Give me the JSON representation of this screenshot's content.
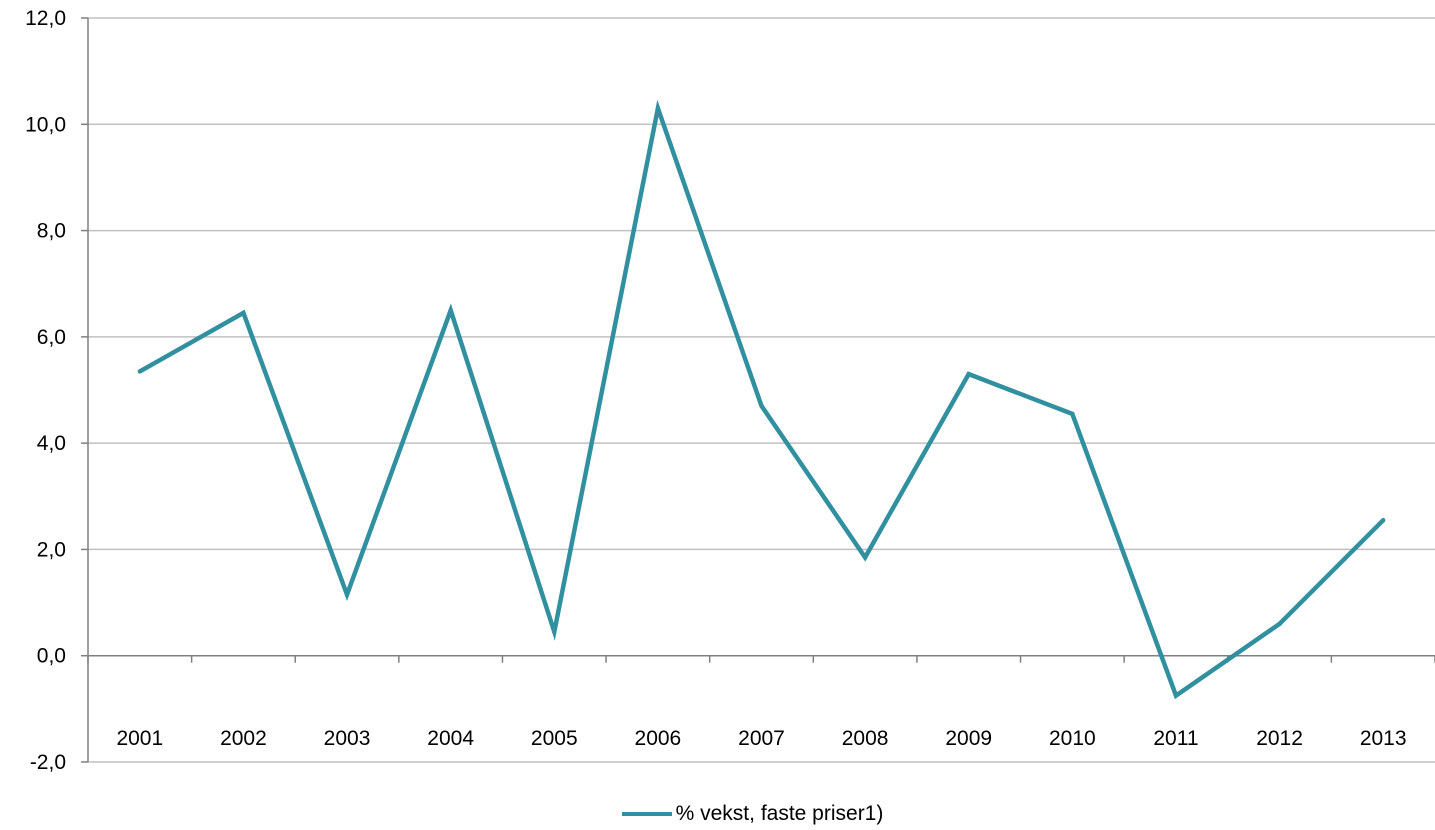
{
  "chart_data": {
    "type": "line",
    "categories": [
      "2001",
      "2002",
      "2003",
      "2004",
      "2005",
      "2006",
      "2007",
      "2008",
      "2009",
      "2010",
      "2011",
      "2012",
      "2013"
    ],
    "series": [
      {
        "name": "% vekst, faste priser1)",
        "color": "#31909f",
        "values": [
          5.35,
          6.45,
          1.15,
          6.5,
          0.45,
          10.3,
          4.7,
          1.85,
          5.3,
          4.55,
          -0.75,
          0.6,
          2.55
        ]
      }
    ],
    "ylim": [
      -2,
      12
    ],
    "yticks": [
      -2,
      0,
      2,
      4,
      6,
      8,
      10,
      12
    ],
    "ytick_labels": [
      "-2,0",
      "0,0",
      "2,0",
      "4,0",
      "6,0",
      "8,0",
      "10,0",
      "12,0"
    ],
    "grid": true,
    "gridline_color": "#c0c0c0",
    "legend_position": "bottom"
  }
}
